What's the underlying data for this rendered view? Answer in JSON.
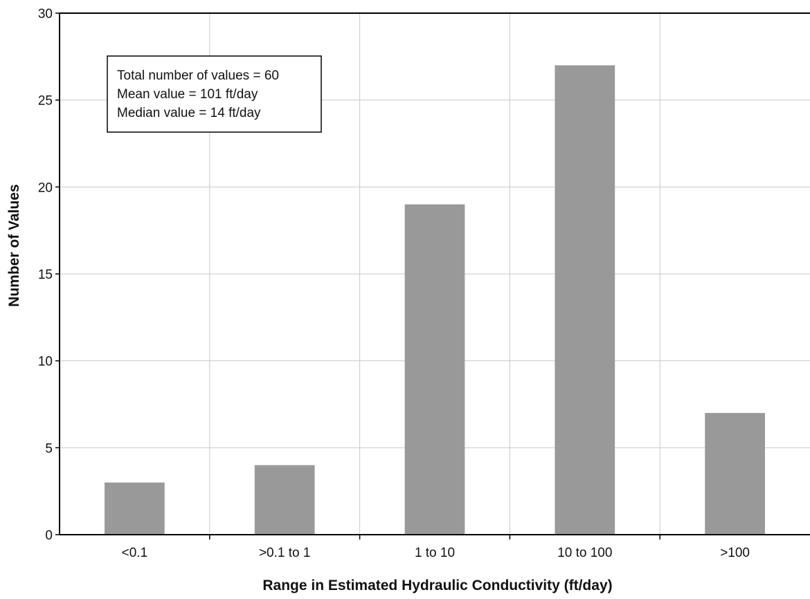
{
  "chart_data": {
    "type": "bar",
    "categories": [
      "<0.1",
      ">0.1 to 1",
      "1 to 10",
      "10 to 100",
      ">100"
    ],
    "values": [
      3,
      4,
      19,
      27,
      7
    ],
    "xlabel": "Range in Estimated Hydraulic Conductivity (ft/day)",
    "ylabel": "Number of Values",
    "ylim": [
      0,
      30
    ],
    "yticks": [
      0,
      5,
      10,
      15,
      20,
      25,
      30
    ],
    "grid": true,
    "bar_color": "#999999",
    "annotation": [
      "Total number of values = 60",
      "Mean value = 101 ft/day",
      "Median value = 14 ft/day"
    ]
  }
}
